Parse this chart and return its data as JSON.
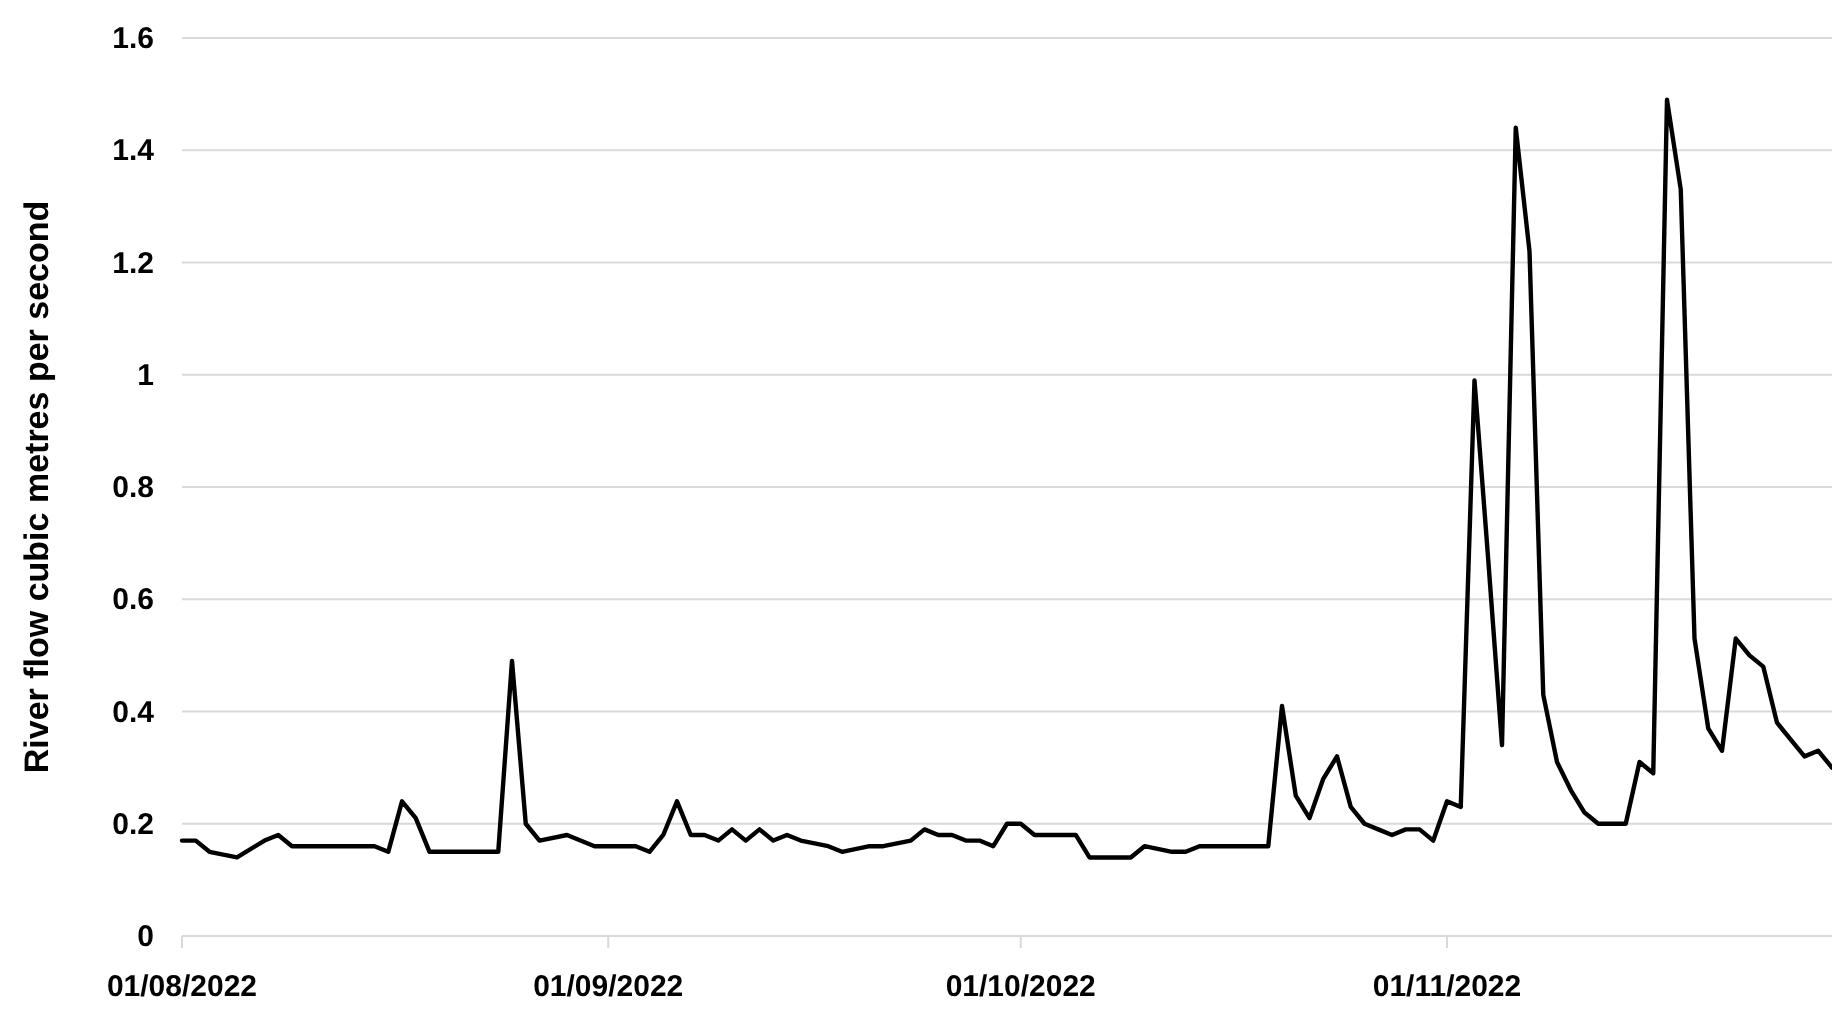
{
  "chart_data": {
    "type": "line",
    "ylabel": "River flow cubic metres per second",
    "x": [
      "2022-08-01",
      "2022-08-02",
      "2022-08-03",
      "2022-08-05",
      "2022-08-07",
      "2022-08-08",
      "2022-08-09",
      "2022-08-13",
      "2022-08-15",
      "2022-08-16",
      "2022-08-17",
      "2022-08-18",
      "2022-08-19",
      "2022-08-24",
      "2022-08-25",
      "2022-08-26",
      "2022-08-27",
      "2022-08-29",
      "2022-08-31",
      "2022-09-01",
      "2022-09-03",
      "2022-09-04",
      "2022-09-05",
      "2022-09-06",
      "2022-09-07",
      "2022-09-08",
      "2022-09-09",
      "2022-09-10",
      "2022-09-11",
      "2022-09-12",
      "2022-09-13",
      "2022-09-14",
      "2022-09-15",
      "2022-09-17",
      "2022-09-18",
      "2022-09-20",
      "2022-09-21",
      "2022-09-23",
      "2022-09-24",
      "2022-09-25",
      "2022-09-26",
      "2022-09-27",
      "2022-09-28",
      "2022-09-29",
      "2022-09-30",
      "2022-10-01",
      "2022-10-02",
      "2022-10-04",
      "2022-10-05",
      "2022-10-06",
      "2022-10-07",
      "2022-10-08",
      "2022-10-09",
      "2022-10-10",
      "2022-10-12",
      "2022-10-13",
      "2022-10-14",
      "2022-10-16",
      "2022-10-17",
      "2022-10-18",
      "2022-10-19",
      "2022-10-20",
      "2022-10-21",
      "2022-10-22",
      "2022-10-23",
      "2022-10-24",
      "2022-10-25",
      "2022-10-26",
      "2022-10-27",
      "2022-10-28",
      "2022-10-29",
      "2022-10-30",
      "2022-10-31",
      "2022-11-01",
      "2022-11-02",
      "2022-11-03",
      "2022-11-04",
      "2022-11-05",
      "2022-11-06",
      "2022-11-07",
      "2022-11-08",
      "2022-11-09",
      "2022-11-10",
      "2022-11-11",
      "2022-11-12",
      "2022-11-13",
      "2022-11-14",
      "2022-11-15",
      "2022-11-16",
      "2022-11-17",
      "2022-11-18",
      "2022-11-19",
      "2022-11-20",
      "2022-11-21",
      "2022-11-22",
      "2022-11-23",
      "2022-11-24",
      "2022-11-25",
      "2022-11-26",
      "2022-11-27",
      "2022-11-28",
      "2022-11-29"
    ],
    "series": [
      {
        "color": "#000000",
        "values": [
          0.17,
          0.17,
          0.15,
          0.14,
          0.17,
          0.18,
          0.16,
          0.16,
          0.16,
          0.15,
          0.24,
          0.21,
          0.15,
          0.15,
          0.49,
          0.2,
          0.17,
          0.18,
          0.16,
          0.16,
          0.16,
          0.15,
          0.18,
          0.24,
          0.18,
          0.18,
          0.17,
          0.19,
          0.17,
          0.19,
          0.17,
          0.18,
          0.17,
          0.16,
          0.15,
          0.16,
          0.16,
          0.17,
          0.19,
          0.18,
          0.18,
          0.17,
          0.17,
          0.16,
          0.2,
          0.2,
          0.18,
          0.18,
          0.18,
          0.14,
          0.14,
          0.14,
          0.14,
          0.16,
          0.15,
          0.15,
          0.16,
          0.16,
          0.16,
          0.16,
          0.16,
          0.41,
          0.25,
          0.21,
          0.28,
          0.32,
          0.23,
          0.2,
          0.19,
          0.18,
          0.19,
          0.19,
          0.17,
          0.24,
          0.23,
          0.99,
          0.67,
          0.34,
          1.44,
          1.22,
          0.43,
          0.31,
          0.26,
          0.22,
          0.2,
          0.2,
          0.2,
          0.31,
          0.29,
          1.49,
          1.33,
          0.53,
          0.37,
          0.33,
          0.53,
          0.5,
          0.48,
          0.38,
          0.35,
          0.32,
          0.33,
          0.3
        ]
      }
    ],
    "xlim": [
      "2022-08-01",
      "2022-11-29"
    ],
    "xticks": [
      {
        "value": "2022-08-01",
        "label": "01/08/2022"
      },
      {
        "value": "2022-09-01",
        "label": "01/09/2022"
      },
      {
        "value": "2022-10-01",
        "label": "01/10/2022"
      },
      {
        "value": "2022-11-01",
        "label": "01/11/2022"
      }
    ],
    "ylim": [
      0,
      1.6
    ],
    "yticks": [
      0,
      0.2,
      0.4,
      0.6,
      0.8,
      1,
      1.2,
      1.4,
      1.6
    ],
    "grid": "y",
    "marker": "none",
    "line_style": "solid"
  }
}
